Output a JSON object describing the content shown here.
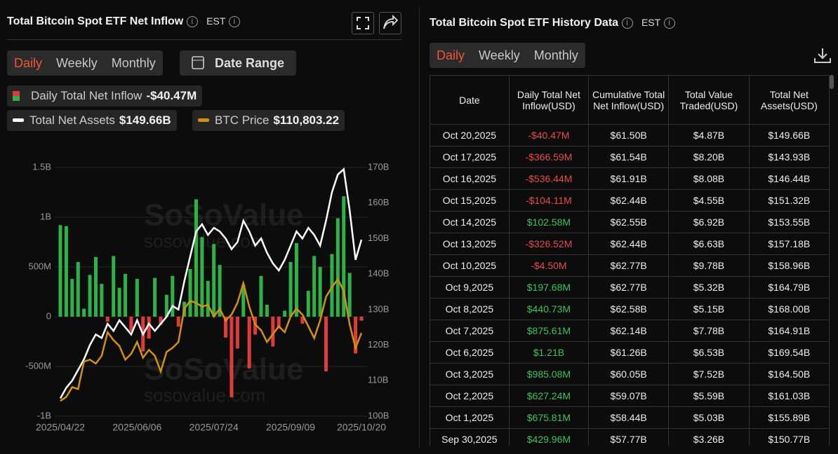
{
  "left_panel": {
    "title": "Total Bitcoin Spot ETF Net Inflow",
    "timezone": "EST",
    "tabs": [
      "Daily",
      "Weekly",
      "Monthly"
    ],
    "date_range": "Date Range"
  },
  "watermark": {
    "brand": "SoSoValue",
    "site": "sosovalue.com"
  },
  "chart_data": {
    "type": "bar-line",
    "categories": [
      "2025/04/22",
      null,
      null,
      null,
      null,
      null,
      null,
      null,
      null,
      null,
      null,
      null,
      null,
      "2025/06/06",
      null,
      null,
      null,
      null,
      null,
      null,
      null,
      null,
      null,
      null,
      null,
      null,
      "2025/07/24",
      null,
      null,
      null,
      null,
      null,
      null,
      null,
      null,
      null,
      null,
      null,
      null,
      "2025/09/09",
      null,
      null,
      null,
      null,
      null,
      null,
      null,
      null,
      null,
      null,
      null,
      "2025/10/20"
    ],
    "series": [
      {
        "name": "Daily Total Net Inflow",
        "latest": "-$40.47M",
        "color": "#2fb14a",
        "negative_color": "#e03b3b",
        "values": [
          0.92,
          0.91,
          0.38,
          0.55,
          0.08,
          0.42,
          0.6,
          0.33,
          -0.05,
          0.61,
          0.29,
          0.43,
          -0.15,
          0.38,
          -0.35,
          -0.22,
          0.39,
          -0.08,
          0.22,
          0.41,
          -0.1,
          0.15,
          0.48,
          1.18,
          0.8,
          0.36,
          0.73,
          0.52,
          -0.21,
          -0.81,
          -0.32,
          0.32,
          -0.52,
          -0.18,
          0.41,
          0.12,
          -0.3,
          -0.12,
          0.06,
          0.55,
          0.74,
          -0.07,
          0.26,
          0.61,
          0.5,
          -0.55,
          0.63,
          0.99,
          1.21,
          0.44,
          -0.37,
          -0.04
        ]
      },
      {
        "name": "Total Net Assets",
        "latest": "$149.66B",
        "axis": "y2",
        "color": "#ffffff",
        "values": [
          105,
          108,
          110,
          113,
          116,
          120,
          123,
          122,
          126,
          124,
          127,
          125,
          123,
          127,
          123,
          126,
          124,
          126,
          128,
          131,
          130,
          138,
          145,
          152,
          154,
          151,
          153,
          152,
          150,
          147,
          149,
          155,
          152,
          148,
          150,
          146,
          143,
          141,
          144,
          148,
          152,
          150,
          153,
          151,
          148,
          155,
          163,
          168,
          169.5,
          158,
          144,
          149.66
        ]
      },
      {
        "name": "BTC Price",
        "latest": "$110,803.22",
        "axis": "y3",
        "color": "#d4900f",
        "values": [
          93500,
          94500,
          97000,
          96500,
          103500,
          104000,
          103000,
          105000,
          111000,
          109000,
          107500,
          104000,
          105500,
          108500,
          104500,
          106500,
          105000,
          101000,
          106000,
          107000,
          108500,
          117000,
          119000,
          118500,
          117500,
          118000,
          115000,
          117000,
          114000,
          115500,
          118500,
          123500,
          117500,
          113000,
          111500,
          108500,
          110500,
          112500,
          111000,
          115000,
          117000,
          115500,
          112500,
          109500,
          114000,
          120000,
          122500,
          124500,
          121500,
          113000,
          107000,
          110803.22
        ]
      }
    ],
    "ylim": [
      -1,
      1.5
    ],
    "yticks": [
      {
        "value": -1,
        "label": "-1B"
      },
      {
        "value": -0.5,
        "label": "-500M"
      },
      0,
      {
        "value": 0.5,
        "label": "500M"
      },
      {
        "value": 1,
        "label": "1B"
      },
      {
        "value": 1.5,
        "label": "1.5B"
      }
    ],
    "y2lim": [
      100,
      170
    ],
    "y2ticks": [
      {
        "value": 100,
        "label": "100B"
      },
      {
        "value": 110,
        "label": "110B"
      },
      {
        "value": 120,
        "label": "120B"
      },
      {
        "value": 130,
        "label": "130B"
      },
      {
        "value": 140,
        "label": "140B"
      },
      {
        "value": 150,
        "label": "150B"
      },
      {
        "value": 160,
        "label": "160B"
      },
      {
        "value": 170,
        "label": "170B"
      }
    ],
    "y3lim": [
      89600,
      153000
    ],
    "grid": true
  },
  "table_panel": {
    "title": "Total Bitcoin Spot ETF History Data",
    "timezone": "EST",
    "tabs": [
      "Daily",
      "Weekly",
      "Monthly"
    ],
    "table": {
      "columns": [
        "Date",
        "Daily Total Net Inflow(USD)",
        "Cumulative Total Net Inflow(USD)",
        "Total Value Traded(USD)",
        "Total Net Assets(USD)"
      ],
      "rows": [
        [
          "Oct 20,2025",
          "-$40.47M",
          "$61.50B",
          "$4.87B",
          "$149.66B"
        ],
        [
          "Oct 17,2025",
          "-$366.59M",
          "$61.54B",
          "$8.20B",
          "$143.93B"
        ],
        [
          "Oct 16,2025",
          "-$536.44M",
          "$61.91B",
          "$8.08B",
          "$146.44B"
        ],
        [
          "Oct 15,2025",
          "-$104.11M",
          "$62.44B",
          "$4.55B",
          "$151.32B"
        ],
        [
          "Oct 14,2025",
          "$102.58M",
          "$62.55B",
          "$6.92B",
          "$153.55B"
        ],
        [
          "Oct 13,2025",
          "-$326.52M",
          "$62.44B",
          "$6.63B",
          "$157.18B"
        ],
        [
          "Oct 10,2025",
          "-$4.50M",
          "$62.77B",
          "$9.78B",
          "$158.96B"
        ],
        [
          "Oct 9,2025",
          "$197.68M",
          "$62.77B",
          "$5.32B",
          "$164.79B"
        ],
        [
          "Oct 8,2025",
          "$440.73M",
          "$62.58B",
          "$5.15B",
          "$168.00B"
        ],
        [
          "Oct 7,2025",
          "$875.61M",
          "$62.14B",
          "$7.78B",
          "$164.91B"
        ],
        [
          "Oct 6,2025",
          "$1.21B",
          "$61.26B",
          "$6.53B",
          "$169.54B"
        ],
        [
          "Oct 3,2025",
          "$985.08M",
          "$60.05B",
          "$7.52B",
          "$164.50B"
        ],
        [
          "Oct 2,2025",
          "$627.24M",
          "$59.07B",
          "$5.59B",
          "$161.03B"
        ],
        [
          "Oct 1,2025",
          "$675.81M",
          "$58.44B",
          "$5.03B",
          "$155.89B"
        ],
        [
          "Sep 30,2025",
          "$429.96M",
          "$57.77B",
          "$3.26B",
          "$150.77B"
        ]
      ]
    }
  }
}
